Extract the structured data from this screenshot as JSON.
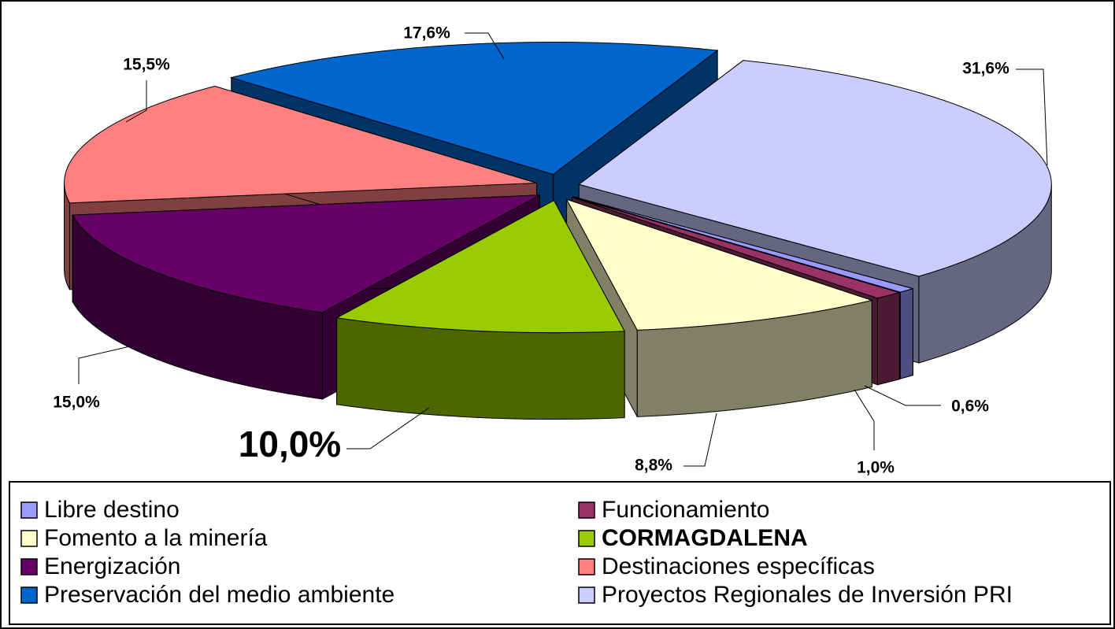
{
  "chart_data": {
    "type": "pie3d",
    "categories": [
      "Libre destino",
      "Funcionamiento",
      "Fomento a la minería",
      "CORMAGDALENA",
      "Energización",
      "Destinaciones específicas",
      "Preservación del medio ambiente",
      "Proyectos Regionales de Inversión PRI"
    ],
    "values": [
      0.6,
      1.0,
      8.8,
      10.0,
      15.0,
      15.5,
      17.6,
      31.6
    ],
    "value_labels": [
      "0,6%",
      "1,0%",
      "8,8%",
      "10,0%",
      "15,0%",
      "15,5%",
      "17,6%",
      "31,6%"
    ],
    "colors": [
      "#9999ff",
      "#993366",
      "#ffffcc",
      "#99cc00",
      "#660066",
      "#ff8080",
      "#0066cc",
      "#ccccff"
    ],
    "legend": "bottom"
  }
}
